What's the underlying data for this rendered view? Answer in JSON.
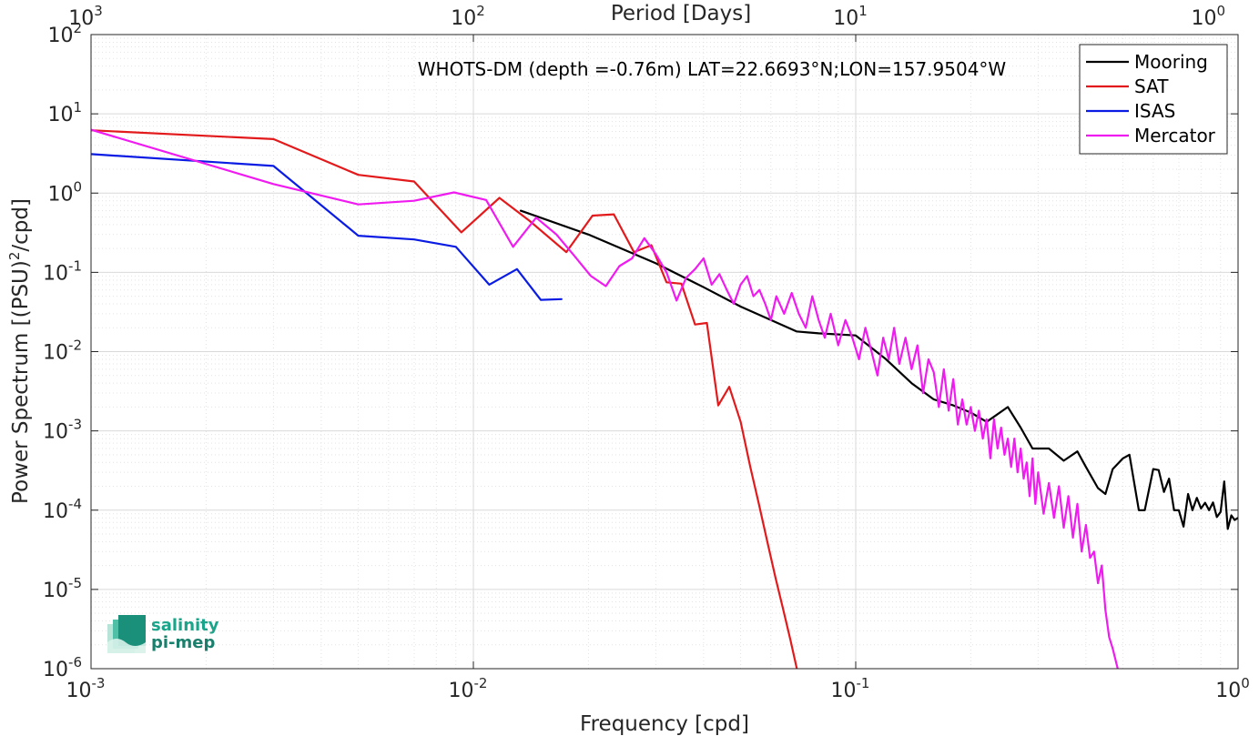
{
  "chart_data": {
    "type": "line",
    "title": "WHOTS-DM (depth =-0.76m) LAT=22.6693°N;LON=157.9504°W",
    "xlabel": "Frequency [cpd]",
    "ylabel": "Power Spectrum [(PSU)",
    "ylabel_sup": "2",
    "ylabel_tail": "/cpd]",
    "top_xlabel": "Period [Days]",
    "xscale": "log",
    "yscale": "log",
    "xlim": [
      0.001,
      1
    ],
    "ylim": [
      1e-06,
      100
    ],
    "grid": true,
    "legend_position": "top-right",
    "x_ticks": [
      {
        "value": 0.001,
        "base": "10",
        "exp": "-3"
      },
      {
        "value": 0.01,
        "base": "10",
        "exp": "-2"
      },
      {
        "value": 0.1,
        "base": "10",
        "exp": "-1"
      },
      {
        "value": 1,
        "base": "10",
        "exp": "0"
      }
    ],
    "y_ticks": [
      {
        "value": 1e-06,
        "base": "10",
        "exp": "-6"
      },
      {
        "value": 1e-05,
        "base": "10",
        "exp": "-5"
      },
      {
        "value": 0.0001,
        "base": "10",
        "exp": "-4"
      },
      {
        "value": 0.001,
        "base": "10",
        "exp": "-3"
      },
      {
        "value": 0.01,
        "base": "10",
        "exp": "-2"
      },
      {
        "value": 0.1,
        "base": "10",
        "exp": "-1"
      },
      {
        "value": 1,
        "base": "10",
        "exp": "0"
      },
      {
        "value": 10,
        "base": "10",
        "exp": "1"
      },
      {
        "value": 100,
        "base": "10",
        "exp": "2"
      }
    ],
    "top_ticks": [
      {
        "value": 0.001,
        "base": "10",
        "exp": "3"
      },
      {
        "value": 0.01,
        "base": "10",
        "exp": "2"
      },
      {
        "value": 0.1,
        "base": "10",
        "exp": "1"
      },
      {
        "value": 1,
        "base": "10",
        "exp": "0"
      }
    ],
    "series": [
      {
        "name": "Mooring",
        "color": "#000000",
        "points": [
          [
            0.0133,
            0.6
          ],
          [
            0.02,
            0.3
          ],
          [
            0.03,
            0.13
          ],
          [
            0.04,
            0.065
          ],
          [
            0.05,
            0.037
          ],
          [
            0.07,
            0.018
          ],
          [
            0.08,
            0.017
          ],
          [
            0.1,
            0.016
          ],
          [
            0.12,
            0.008
          ],
          [
            0.14,
            0.004
          ],
          [
            0.16,
            0.0025
          ],
          [
            0.18,
            0.0021
          ],
          [
            0.2,
            0.0017
          ],
          [
            0.22,
            0.0013
          ],
          [
            0.25,
            0.002
          ],
          [
            0.27,
            0.0011
          ],
          [
            0.29,
            0.0006
          ],
          [
            0.32,
            0.0006
          ],
          [
            0.35,
            0.00042
          ],
          [
            0.38,
            0.00055
          ],
          [
            0.4,
            0.00035
          ],
          [
            0.43,
            0.00019
          ],
          [
            0.45,
            0.00016
          ],
          [
            0.47,
            0.00033
          ],
          [
            0.5,
            0.00045
          ],
          [
            0.52,
            0.0005
          ],
          [
            0.55,
            0.0001
          ],
          [
            0.57,
            0.0001
          ],
          [
            0.6,
            0.00033
          ],
          [
            0.62,
            0.00032
          ],
          [
            0.64,
            0.00017
          ],
          [
            0.66,
            0.00025
          ],
          [
            0.68,
            0.0001
          ],
          [
            0.7,
            0.0001
          ],
          [
            0.72,
            6.2e-05
          ],
          [
            0.74,
            0.00016
          ],
          [
            0.76,
            0.0001
          ],
          [
            0.78,
            0.000143
          ],
          [
            0.8,
            0.000105
          ],
          [
            0.82,
            0.000124
          ],
          [
            0.84,
            0.0001
          ],
          [
            0.86,
            0.000125
          ],
          [
            0.88,
            8.2e-05
          ],
          [
            0.9,
            9.5e-05
          ],
          [
            0.92,
            0.00023
          ],
          [
            0.94,
            5.8e-05
          ],
          [
            0.96,
            8.6e-05
          ],
          [
            0.98,
            7.5e-05
          ],
          [
            1.0,
            8e-05
          ]
        ]
      },
      {
        "name": "SAT",
        "color": "#e31a1c",
        "points": [
          [
            0.001,
            6.2
          ],
          [
            0.003,
            4.8
          ],
          [
            0.005,
            1.7
          ],
          [
            0.007,
            1.4
          ],
          [
            0.0093,
            0.32
          ],
          [
            0.0117,
            0.87
          ],
          [
            0.014,
            0.45
          ],
          [
            0.0175,
            0.18
          ],
          [
            0.0205,
            0.52
          ],
          [
            0.0233,
            0.54
          ],
          [
            0.0263,
            0.18
          ],
          [
            0.0292,
            0.22
          ],
          [
            0.032,
            0.075
          ],
          [
            0.035,
            0.072
          ],
          [
            0.038,
            0.022
          ],
          [
            0.0408,
            0.023
          ],
          [
            0.0437,
            0.0021
          ],
          [
            0.0467,
            0.0036
          ],
          [
            0.05,
            0.0013
          ],
          [
            0.053,
            0.00035
          ],
          [
            0.0558,
            0.00012
          ],
          [
            0.0588,
            3.9e-05
          ],
          [
            0.0617,
            1.4e-05
          ],
          [
            0.0645,
            5.8e-06
          ],
          [
            0.0675,
            2.3e-06
          ],
          [
            0.0705,
            9e-07
          ]
        ]
      },
      {
        "name": "ISAS",
        "color": "#0a1ce3",
        "points": [
          [
            0.001,
            3.1
          ],
          [
            0.003,
            2.2
          ],
          [
            0.005,
            0.29
          ],
          [
            0.007,
            0.26
          ],
          [
            0.009,
            0.21
          ],
          [
            0.011,
            0.07
          ],
          [
            0.013,
            0.11
          ],
          [
            0.015,
            0.045
          ],
          [
            0.017,
            0.046
          ]
        ]
      },
      {
        "name": "Mercator",
        "color": "#f01bf0",
        "points": [
          [
            0.001,
            6.3
          ],
          [
            0.003,
            1.3
          ],
          [
            0.005,
            0.72
          ],
          [
            0.007,
            0.8
          ],
          [
            0.0089,
            1.02
          ],
          [
            0.0108,
            0.82
          ],
          [
            0.0127,
            0.21
          ],
          [
            0.0146,
            0.49
          ],
          [
            0.0165,
            0.3
          ],
          [
            0.0184,
            0.16
          ],
          [
            0.0203,
            0.09
          ],
          [
            0.0222,
            0.067
          ],
          [
            0.0241,
            0.12
          ],
          [
            0.026,
            0.15
          ],
          [
            0.028,
            0.27
          ],
          [
            0.03,
            0.17
          ],
          [
            0.032,
            0.1
          ],
          [
            0.034,
            0.044
          ],
          [
            0.036,
            0.085
          ],
          [
            0.038,
            0.11
          ],
          [
            0.04,
            0.15
          ],
          [
            0.042,
            0.07
          ],
          [
            0.044,
            0.095
          ],
          [
            0.046,
            0.06
          ],
          [
            0.048,
            0.04
          ],
          [
            0.05,
            0.07
          ],
          [
            0.052,
            0.09
          ],
          [
            0.054,
            0.05
          ],
          [
            0.056,
            0.06
          ],
          [
            0.058,
            0.04
          ],
          [
            0.06,
            0.025
          ],
          [
            0.062,
            0.05
          ],
          [
            0.065,
            0.03
          ],
          [
            0.068,
            0.055
          ],
          [
            0.071,
            0.03
          ],
          [
            0.074,
            0.02
          ],
          [
            0.077,
            0.05
          ],
          [
            0.08,
            0.025
          ],
          [
            0.083,
            0.015
          ],
          [
            0.086,
            0.03
          ],
          [
            0.09,
            0.012
          ],
          [
            0.094,
            0.025
          ],
          [
            0.098,
            0.015
          ],
          [
            0.102,
            0.008
          ],
          [
            0.106,
            0.02
          ],
          [
            0.11,
            0.01
          ],
          [
            0.114,
            0.005
          ],
          [
            0.118,
            0.015
          ],
          [
            0.122,
            0.008
          ],
          [
            0.126,
            0.02
          ],
          [
            0.13,
            0.007
          ],
          [
            0.135,
            0.015
          ],
          [
            0.14,
            0.006
          ],
          [
            0.145,
            0.012
          ],
          [
            0.15,
            0.003
          ],
          [
            0.155,
            0.008
          ],
          [
            0.16,
            0.0055
          ],
          [
            0.165,
            0.002
          ],
          [
            0.17,
            0.006
          ],
          [
            0.175,
            0.0018
          ],
          [
            0.18,
            0.0045
          ],
          [
            0.185,
            0.0012
          ],
          [
            0.19,
            0.0025
          ],
          [
            0.195,
            0.0012
          ],
          [
            0.2,
            0.002
          ],
          [
            0.205,
            0.001
          ],
          [
            0.21,
            0.0018
          ],
          [
            0.215,
            0.0008
          ],
          [
            0.22,
            0.0014
          ],
          [
            0.225,
            0.00045
          ],
          [
            0.23,
            0.0014
          ],
          [
            0.235,
            0.0006
          ],
          [
            0.24,
            0.0011
          ],
          [
            0.245,
            0.0005
          ],
          [
            0.25,
            0.0008
          ],
          [
            0.255,
            0.00035
          ],
          [
            0.26,
            0.0008
          ],
          [
            0.265,
            0.0003
          ],
          [
            0.27,
            0.0006
          ],
          [
            0.275,
            0.00025
          ],
          [
            0.28,
            0.0004
          ],
          [
            0.285,
            0.00015
          ],
          [
            0.29,
            0.00045
          ],
          [
            0.295,
            0.00012
          ],
          [
            0.3,
            0.0003
          ],
          [
            0.31,
            9e-05
          ],
          [
            0.32,
            0.00022
          ],
          [
            0.33,
            8e-05
          ],
          [
            0.34,
            0.0002
          ],
          [
            0.35,
            6e-05
          ],
          [
            0.36,
            0.00015
          ],
          [
            0.37,
            4.5e-05
          ],
          [
            0.38,
            0.00012
          ],
          [
            0.39,
            3e-05
          ],
          [
            0.4,
            6.5e-05
          ],
          [
            0.41,
            2.5e-05
          ],
          [
            0.42,
            3e-05
          ],
          [
            0.43,
            1.2e-05
          ],
          [
            0.44,
            2e-05
          ],
          [
            0.45,
            5.5e-06
          ],
          [
            0.46,
            2.5e-06
          ],
          [
            0.47,
            1.8e-06
          ],
          [
            0.48,
            1.2e-06
          ],
          [
            0.49,
            8e-07
          ]
        ]
      }
    ]
  },
  "logo": {
    "line1": "salinity",
    "line2": "pi-mep"
  }
}
